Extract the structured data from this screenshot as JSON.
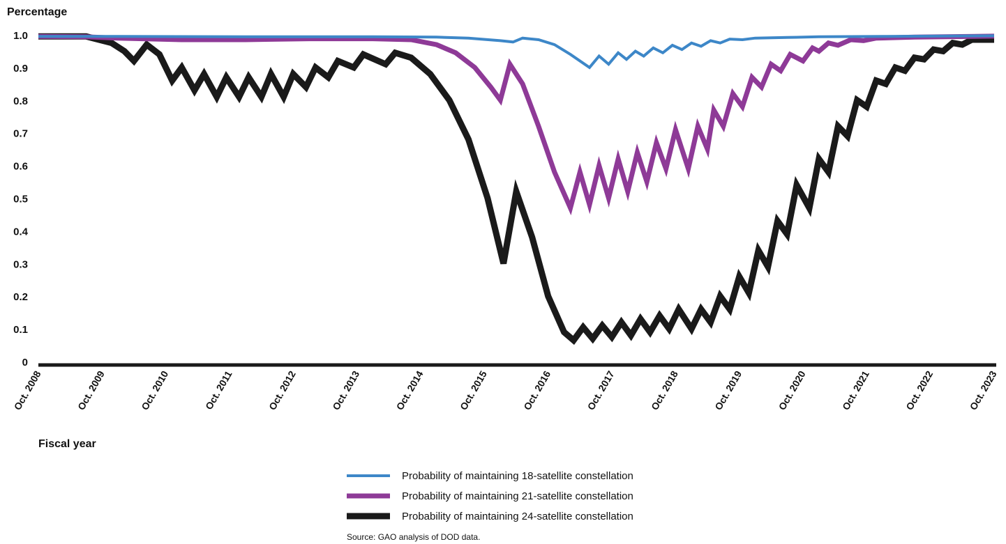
{
  "chart_data": {
    "type": "line",
    "ylabel": "Percentage",
    "xlabel": "Fiscal year",
    "ylim": [
      0,
      1.0
    ],
    "yticks": [
      "0",
      "0.1",
      "0.2",
      "0.3",
      "0.4",
      "0.5",
      "0.6",
      "0.7",
      "0.8",
      "0.9",
      "1.0"
    ],
    "xticks": [
      "Oct. 2008",
      "Oct. 2009",
      "Oct. 2010",
      "Oct. 2011",
      "Oct. 2012",
      "Oct. 2013",
      "Oct. 2014",
      "Oct. 2015",
      "Oct. 2016",
      "Oct. 2017",
      "Oct. 2018",
      "Oct. 2019",
      "Oct. 2020",
      "Oct. 2021",
      "Oct. 2022",
      "Oct. 2023"
    ],
    "xlim": [
      2008.75,
      2023.75
    ],
    "grid": false,
    "legend_position": "bottom-center",
    "source": "Source: GAO analysis of DOD data.",
    "series": [
      {
        "name": "Probability of maintaining 18-satellite constellation",
        "color": "#3d87c8",
        "points": [
          [
            2008.75,
            0.995
          ],
          [
            2010.0,
            0.995
          ],
          [
            2012.0,
            0.994
          ],
          [
            2014.0,
            0.994
          ],
          [
            2015.0,
            0.993
          ],
          [
            2015.5,
            0.99
          ],
          [
            2016.0,
            0.982
          ],
          [
            2016.2,
            0.978
          ],
          [
            2016.35,
            0.99
          ],
          [
            2016.6,
            0.985
          ],
          [
            2016.85,
            0.97
          ],
          [
            2017.1,
            0.94
          ],
          [
            2017.4,
            0.9
          ],
          [
            2017.55,
            0.935
          ],
          [
            2017.7,
            0.91
          ],
          [
            2017.85,
            0.945
          ],
          [
            2017.98,
            0.925
          ],
          [
            2018.12,
            0.95
          ],
          [
            2018.25,
            0.935
          ],
          [
            2018.4,
            0.96
          ],
          [
            2018.55,
            0.945
          ],
          [
            2018.7,
            0.968
          ],
          [
            2018.85,
            0.955
          ],
          [
            2019.0,
            0.975
          ],
          [
            2019.15,
            0.965
          ],
          [
            2019.3,
            0.982
          ],
          [
            2019.45,
            0.975
          ],
          [
            2019.6,
            0.987
          ],
          [
            2019.8,
            0.985
          ],
          [
            2020.0,
            0.99
          ],
          [
            2020.5,
            0.992
          ],
          [
            2021.0,
            0.994
          ],
          [
            2022.0,
            0.995
          ],
          [
            2023.75,
            0.997
          ]
        ]
      },
      {
        "name": "Probability of maintaining 21-satellite constellation",
        "color": "#8e3a97",
        "points": [
          [
            2008.75,
            0.995
          ],
          [
            2009.5,
            0.994
          ],
          [
            2010.0,
            0.99
          ],
          [
            2011.0,
            0.985
          ],
          [
            2012.0,
            0.985
          ],
          [
            2013.0,
            0.988
          ],
          [
            2014.0,
            0.988
          ],
          [
            2014.6,
            0.985
          ],
          [
            2015.0,
            0.97
          ],
          [
            2015.3,
            0.945
          ],
          [
            2015.6,
            0.9
          ],
          [
            2015.85,
            0.84
          ],
          [
            2016.0,
            0.8
          ],
          [
            2016.15,
            0.91
          ],
          [
            2016.35,
            0.85
          ],
          [
            2016.6,
            0.72
          ],
          [
            2016.85,
            0.58
          ],
          [
            2017.1,
            0.47
          ],
          [
            2017.25,
            0.58
          ],
          [
            2017.4,
            0.48
          ],
          [
            2017.55,
            0.6
          ],
          [
            2017.7,
            0.5
          ],
          [
            2017.85,
            0.62
          ],
          [
            2018.0,
            0.52
          ],
          [
            2018.15,
            0.64
          ],
          [
            2018.3,
            0.55
          ],
          [
            2018.45,
            0.67
          ],
          [
            2018.6,
            0.59
          ],
          [
            2018.75,
            0.71
          ],
          [
            2018.95,
            0.59
          ],
          [
            2019.1,
            0.72
          ],
          [
            2019.25,
            0.65
          ],
          [
            2019.35,
            0.77
          ],
          [
            2019.5,
            0.72
          ],
          [
            2019.65,
            0.82
          ],
          [
            2019.8,
            0.78
          ],
          [
            2019.95,
            0.87
          ],
          [
            2020.1,
            0.84
          ],
          [
            2020.25,
            0.91
          ],
          [
            2020.4,
            0.89
          ],
          [
            2020.55,
            0.94
          ],
          [
            2020.75,
            0.92
          ],
          [
            2020.9,
            0.96
          ],
          [
            2021.0,
            0.95
          ],
          [
            2021.15,
            0.975
          ],
          [
            2021.3,
            0.968
          ],
          [
            2021.5,
            0.985
          ],
          [
            2021.7,
            0.982
          ],
          [
            2021.9,
            0.99
          ],
          [
            2022.5,
            0.993
          ],
          [
            2023.75,
            0.996
          ]
        ]
      },
      {
        "name": "Probability of maintaining 24-satellite constellation",
        "color": "#1a1a1a",
        "points": [
          [
            2008.75,
            0.995
          ],
          [
            2009.5,
            0.995
          ],
          [
            2009.9,
            0.975
          ],
          [
            2010.1,
            0.95
          ],
          [
            2010.25,
            0.92
          ],
          [
            2010.45,
            0.97
          ],
          [
            2010.65,
            0.94
          ],
          [
            2010.85,
            0.86
          ],
          [
            2011.0,
            0.9
          ],
          [
            2011.2,
            0.83
          ],
          [
            2011.35,
            0.88
          ],
          [
            2011.55,
            0.81
          ],
          [
            2011.7,
            0.87
          ],
          [
            2011.9,
            0.81
          ],
          [
            2012.05,
            0.87
          ],
          [
            2012.25,
            0.81
          ],
          [
            2012.4,
            0.88
          ],
          [
            2012.6,
            0.81
          ],
          [
            2012.75,
            0.88
          ],
          [
            2012.95,
            0.84
          ],
          [
            2013.1,
            0.9
          ],
          [
            2013.3,
            0.87
          ],
          [
            2013.45,
            0.92
          ],
          [
            2013.7,
            0.9
          ],
          [
            2013.85,
            0.94
          ],
          [
            2014.2,
            0.91
          ],
          [
            2014.35,
            0.945
          ],
          [
            2014.6,
            0.93
          ],
          [
            2014.9,
            0.88
          ],
          [
            2015.2,
            0.8
          ],
          [
            2015.5,
            0.68
          ],
          [
            2015.8,
            0.5
          ],
          [
            2016.05,
            0.3
          ],
          [
            2016.25,
            0.52
          ],
          [
            2016.5,
            0.38
          ],
          [
            2016.75,
            0.2
          ],
          [
            2017.0,
            0.09
          ],
          [
            2017.15,
            0.065
          ],
          [
            2017.3,
            0.105
          ],
          [
            2017.45,
            0.07
          ],
          [
            2017.6,
            0.11
          ],
          [
            2017.75,
            0.075
          ],
          [
            2017.9,
            0.12
          ],
          [
            2018.05,
            0.08
          ],
          [
            2018.2,
            0.13
          ],
          [
            2018.35,
            0.09
          ],
          [
            2018.5,
            0.14
          ],
          [
            2018.65,
            0.1
          ],
          [
            2018.8,
            0.16
          ],
          [
            2019.0,
            0.1
          ],
          [
            2019.15,
            0.16
          ],
          [
            2019.3,
            0.12
          ],
          [
            2019.45,
            0.2
          ],
          [
            2019.6,
            0.16
          ],
          [
            2019.75,
            0.26
          ],
          [
            2019.9,
            0.21
          ],
          [
            2020.05,
            0.34
          ],
          [
            2020.2,
            0.29
          ],
          [
            2020.35,
            0.43
          ],
          [
            2020.5,
            0.39
          ],
          [
            2020.65,
            0.54
          ],
          [
            2020.85,
            0.47
          ],
          [
            2021.0,
            0.62
          ],
          [
            2021.15,
            0.58
          ],
          [
            2021.3,
            0.72
          ],
          [
            2021.45,
            0.69
          ],
          [
            2021.6,
            0.8
          ],
          [
            2021.75,
            0.78
          ],
          [
            2021.9,
            0.86
          ],
          [
            2022.05,
            0.85
          ],
          [
            2022.2,
            0.9
          ],
          [
            2022.35,
            0.89
          ],
          [
            2022.5,
            0.93
          ],
          [
            2022.65,
            0.925
          ],
          [
            2022.8,
            0.955
          ],
          [
            2022.95,
            0.95
          ],
          [
            2023.1,
            0.975
          ],
          [
            2023.25,
            0.97
          ],
          [
            2023.4,
            0.985
          ],
          [
            2023.75,
            0.985
          ]
        ]
      }
    ]
  }
}
